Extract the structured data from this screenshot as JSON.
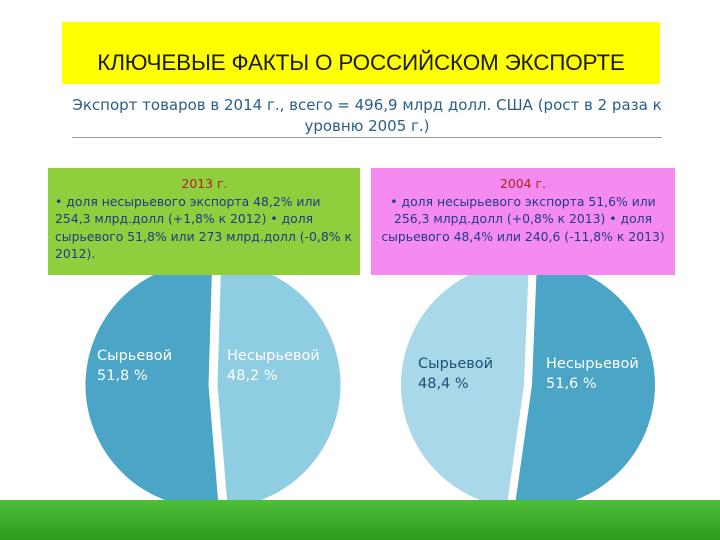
{
  "title": "КЛЮЧЕВЫЕ ФАКТЫ О РОССИЙСКОМ ЭКСПОРТЕ",
  "subtitle": "Экспорт товаров в 2014 г., всего = 496,9 млрд долл. США (рост в 2 раза к уровню 2005 г.)",
  "colors": {
    "title_background": "#ffff00",
    "box_2013": "#8fce3c",
    "box_2004": "#f58bf0",
    "slice_dark_blue": "#4aa5c6",
    "slice_light_blue": "#8fcde2",
    "footer_green": "#3cad2a"
  },
  "boxes": {
    "y2013": {
      "year": "2013 г.",
      "text": "• доля несырьевого экспорта 48,2% или 254,3 млрд.долл (+1,8% к 2012) • доля сырьевого 51,8% или 273 млрд.долл (-0,8% к 2012)."
    },
    "y2004": {
      "year": "2004 г.",
      "text": "• доля несырьевого экспорта 51,6% или 256,3 млрд.долл (+0,8% к 2013) • доля сырьевого 48,4% или 240,6 (-11,8% к 2013)"
    }
  },
  "chart_data": [
    {
      "type": "pie",
      "title": "",
      "slices": [
        {
          "name": "Сырьевой",
          "value": 51.8,
          "label_name": "Сырьевой",
          "label_value": "51,8 %",
          "color": "#4aa5c6"
        },
        {
          "name": "Несырьевой",
          "value": 48.2,
          "label_name": "Несырьевой",
          "label_value": "48,2 %",
          "color": "#8fcde2"
        }
      ],
      "legend": "none"
    },
    {
      "type": "pie",
      "title": "",
      "slices": [
        {
          "name": "Сырьевой",
          "value": 48.4,
          "label_name": "Сырьевой",
          "label_value": "48,4 %",
          "color": "#a9d8e9"
        },
        {
          "name": "Несырьевой",
          "value": 51.6,
          "label_name": "Несырьевой",
          "label_value": "51,6 %",
          "color": "#4aa5c6"
        }
      ],
      "legend": "none"
    }
  ]
}
